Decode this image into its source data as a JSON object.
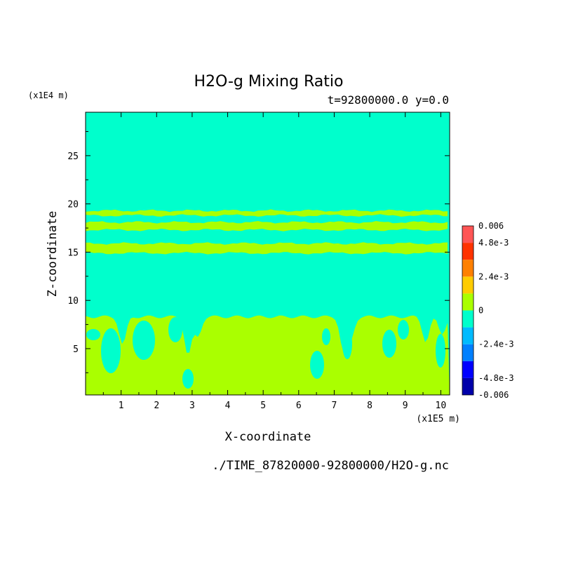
{
  "chart_data": {
    "type": "heatmap",
    "title": "H2O-g Mixing Ratio",
    "subtitle": "t=92800000.0 y=0.0",
    "xlabel": "X-coordinate",
    "ylabel": "Z-coordinate",
    "x_units": "(x1E5 m)",
    "y_units": "(x1E4 m)",
    "xlim": [
      0,
      10.25
    ],
    "ylim": [
      0.2,
      29.5
    ],
    "x_ticks": [
      "1",
      "2",
      "3",
      "4",
      "5",
      "6",
      "7",
      "8",
      "9",
      "10"
    ],
    "y_ticks": [
      "5",
      "10",
      "15",
      "20",
      "25"
    ],
    "footer": "./TIME_87820000-92800000/H2O-g.nc",
    "background_color": "#00ffcc",
    "band_color": "#aaff00",
    "bands": [
      {
        "x_start": 0,
        "x_end": 10.25,
        "z_low": 18.8,
        "z_high": 19.3
      },
      {
        "x_start": 0,
        "x_end": 10.25,
        "z_low": 17.3,
        "z_high": 18.1
      },
      {
        "x_start": 0,
        "x_end": 10.25,
        "z_low": 14.9,
        "z_high": 15.9
      }
    ],
    "lower_layer_top": 8.3,
    "colorbar": {
      "range": [
        -0.006,
        0.006
      ],
      "colors": [
        "#0000aa",
        "#0000ff",
        "#0080ff",
        "#00bbff",
        "#00ffcc",
        "#aaff00",
        "#ffcc00",
        "#ff8000",
        "#ff3300",
        "#ff5555"
      ],
      "labels": [
        {
          "value": 0.006,
          "text": "0.006"
        },
        {
          "value": 0.0048,
          "text": "4.8e-3"
        },
        {
          "value": 0.0024,
          "text": "2.4e-3"
        },
        {
          "value": 0,
          "text": "0"
        },
        {
          "value": -0.0024,
          "text": "-2.4e-3"
        },
        {
          "value": -0.0048,
          "text": "-4.8e-3"
        },
        {
          "value": -0.006,
          "text": "-0.006"
        }
      ]
    }
  }
}
